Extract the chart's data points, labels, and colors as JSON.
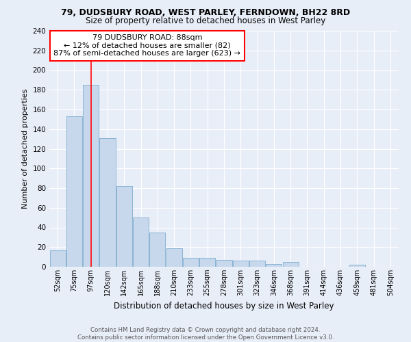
{
  "title1": "79, DUDSBURY ROAD, WEST PARLEY, FERNDOWN, BH22 8RD",
  "title2": "Size of property relative to detached houses in West Parley",
  "xlabel": "Distribution of detached houses by size in West Parley",
  "ylabel": "Number of detached properties",
  "bar_color": "#c8d8ec",
  "bar_edge_color": "#8ab4d4",
  "bg_color": "#e8eef8",
  "grid_color": "#ffffff",
  "categories": [
    "52sqm",
    "75sqm",
    "97sqm",
    "120sqm",
    "142sqm",
    "165sqm",
    "188sqm",
    "210sqm",
    "233sqm",
    "255sqm",
    "278sqm",
    "301sqm",
    "323sqm",
    "346sqm",
    "368sqm",
    "391sqm",
    "414sqm",
    "436sqm",
    "459sqm",
    "481sqm",
    "504sqm"
  ],
  "values": [
    17,
    153,
    185,
    131,
    82,
    50,
    35,
    19,
    9,
    9,
    7,
    6,
    6,
    3,
    5,
    0,
    0,
    0,
    2,
    0,
    0
  ],
  "ylim": [
    0,
    240
  ],
  "yticks": [
    0,
    20,
    40,
    60,
    80,
    100,
    120,
    140,
    160,
    180,
    200,
    220,
    240
  ],
  "vline_x": 2.0,
  "annotation_text": "79 DUDSBURY ROAD: 88sqm\n← 12% of detached houses are smaller (82)\n87% of semi-detached houses are larger (623) →",
  "annotation_box_color": "white",
  "annotation_border_color": "red",
  "footer": "Contains HM Land Registry data © Crown copyright and database right 2024.\nContains public sector information licensed under the Open Government Licence v3.0."
}
